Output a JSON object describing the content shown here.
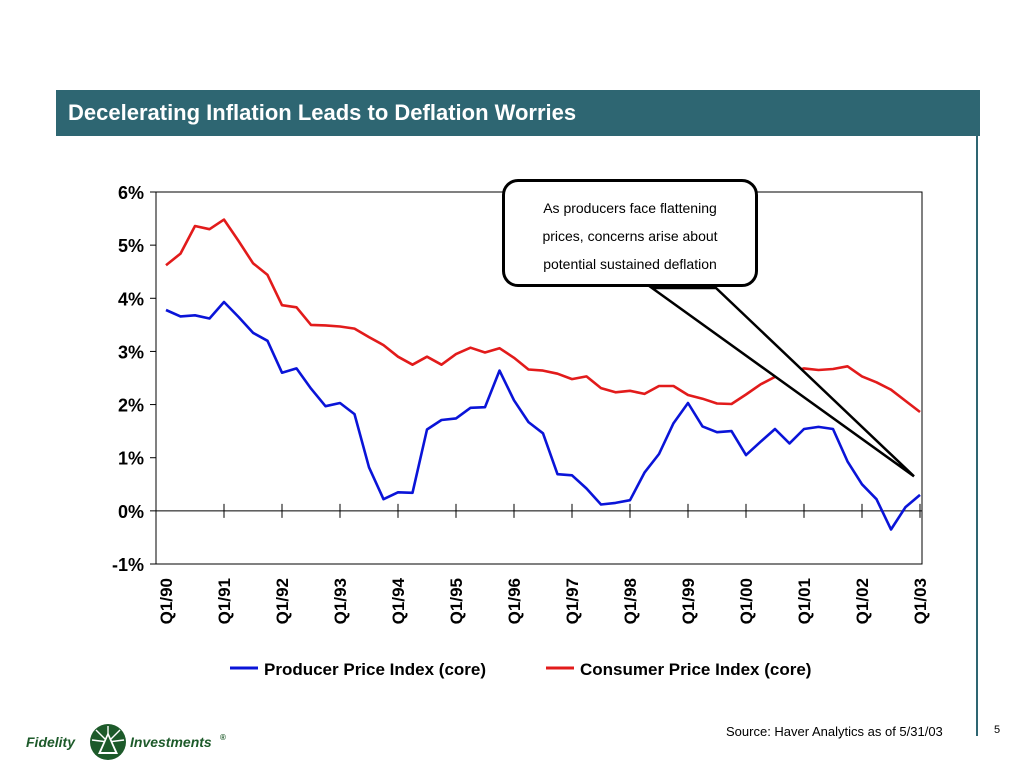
{
  "page": {
    "title": "Decelerating Inflation Leads to Deflation Worries",
    "source": "Source: Haver Analytics as of 5/31/03",
    "page_number": "5",
    "callout_lines": [
      "As producers face flattening",
      "prices, concerns arise about",
      "potential sustained deflation"
    ],
    "logo": {
      "left": "Fidelity",
      "right": "Investments",
      "mark": "®"
    }
  },
  "colors": {
    "title_bar": "#2e6672",
    "ppi": "#0a14d8",
    "cpi": "#e21b1b"
  },
  "chart_data": {
    "type": "line",
    "ylim": [
      -1,
      6
    ],
    "yticks": [
      "-1%",
      "0%",
      "1%",
      "2%",
      "3%",
      "4%",
      "5%",
      "6%"
    ],
    "xticks": [
      "Q1/90",
      "Q1/91",
      "Q1/92",
      "Q1/93",
      "Q1/94",
      "Q1/95",
      "Q1/96",
      "Q1/97",
      "Q1/98",
      "Q1/99",
      "Q1/00",
      "Q1/01",
      "Q1/02",
      "Q1/03"
    ],
    "legend_position": "bottom",
    "grid": false,
    "series": [
      {
        "name": "Producer Price Index (core)",
        "values": [
          3.78,
          3.66,
          3.68,
          3.62,
          3.93,
          3.65,
          3.35,
          3.2,
          2.6,
          2.68,
          2.3,
          1.97,
          2.03,
          1.82,
          0.82,
          0.22,
          0.35,
          0.34,
          1.53,
          1.71,
          1.74,
          1.94,
          1.95,
          2.64,
          2.08,
          1.67,
          1.46,
          0.69,
          0.67,
          0.42,
          0.12,
          0.15,
          0.2,
          0.72,
          1.07,
          1.65,
          2.03,
          1.59,
          1.48,
          1.5,
          1.05,
          1.3,
          1.54,
          1.27,
          1.54,
          1.58,
          1.54,
          0.93,
          0.5,
          0.22,
          -0.35,
          0.07,
          0.3
        ]
      },
      {
        "name": "Consumer Price Index (core)",
        "values": [
          4.62,
          4.84,
          5.36,
          5.3,
          5.48,
          5.08,
          4.66,
          4.44,
          3.87,
          3.83,
          3.5,
          3.49,
          3.47,
          3.43,
          3.27,
          3.12,
          2.9,
          2.75,
          2.9,
          2.75,
          2.95,
          3.07,
          2.98,
          3.06,
          2.88,
          2.66,
          2.64,
          2.58,
          2.48,
          2.53,
          2.31,
          2.23,
          2.26,
          2.2,
          2.35,
          2.35,
          2.18,
          2.11,
          2.02,
          2.01,
          2.19,
          2.38,
          2.52,
          2.6,
          2.68,
          2.65,
          2.67,
          2.72,
          2.53,
          2.42,
          2.28,
          2.07,
          1.86
        ]
      }
    ]
  }
}
